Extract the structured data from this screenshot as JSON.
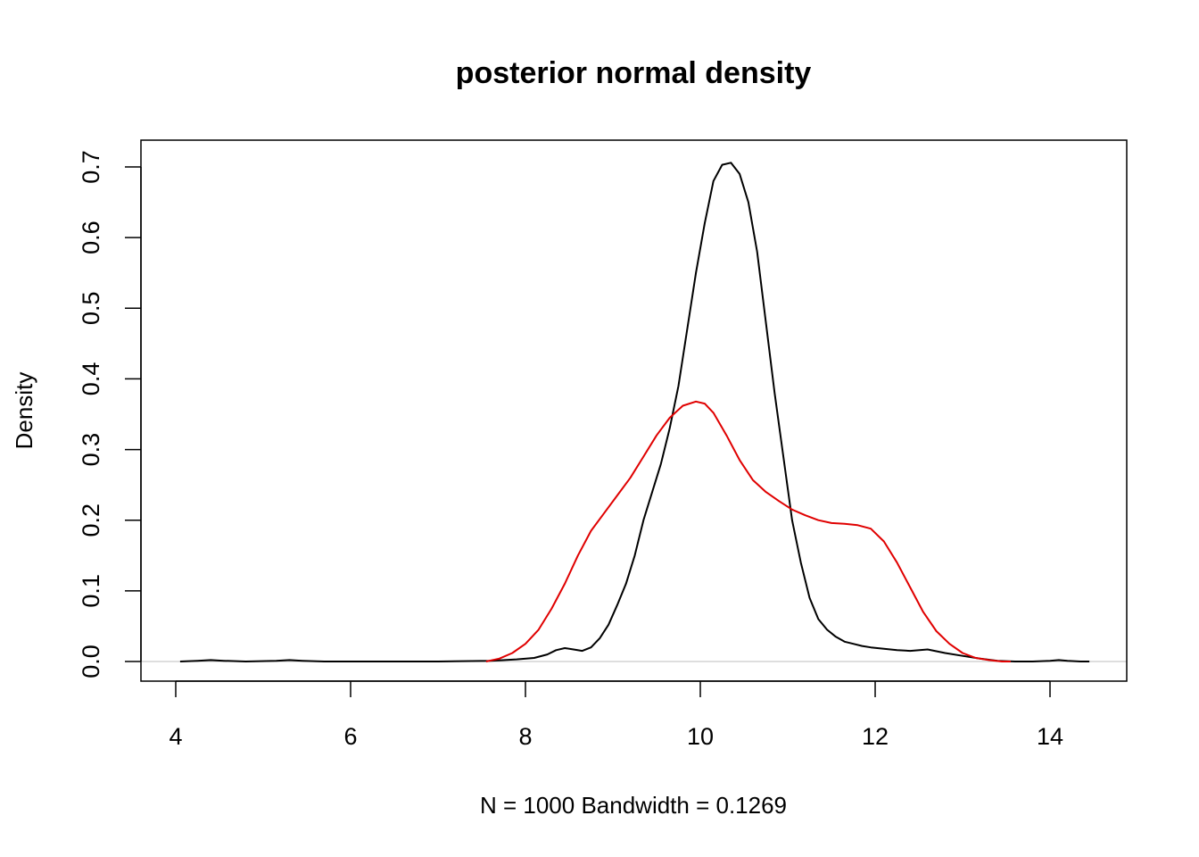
{
  "chart_data": {
    "type": "line",
    "title": "posterior normal density",
    "xlabel": "N = 1000   Bandwidth = 0.1269",
    "ylabel": "Density",
    "xlim": [
      4,
      14.6
    ],
    "ylim": [
      0,
      0.7
    ],
    "x_ticks": [
      4,
      6,
      8,
      10,
      12,
      14
    ],
    "x_tick_labels": [
      "4",
      "6",
      "8",
      "10",
      "12",
      "14"
    ],
    "y_ticks": [
      0,
      0.1,
      0.2,
      0.3,
      0.4,
      0.5,
      0.6,
      0.7
    ],
    "y_tick_labels": [
      "0.0",
      "0.1",
      "0.2",
      "0.3",
      "0.4",
      "0.5",
      "0.6",
      "0.7"
    ],
    "grid": false,
    "baseline": {
      "y": 0,
      "color": "#bebebe"
    },
    "series": [
      {
        "color": "#000000",
        "x": [
          4.05,
          4.25,
          4.4,
          4.55,
          4.8,
          5.15,
          5.3,
          5.45,
          5.7,
          6.0,
          7.0,
          7.6,
          7.9,
          8.1,
          8.25,
          8.35,
          8.45,
          8.55,
          8.65,
          8.75,
          8.85,
          8.95,
          9.05,
          9.15,
          9.25,
          9.35,
          9.45,
          9.55,
          9.65,
          9.75,
          9.85,
          9.95,
          10.05,
          10.15,
          10.25,
          10.35,
          10.45,
          10.55,
          10.65,
          10.75,
          10.85,
          10.95,
          11.05,
          11.15,
          11.25,
          11.35,
          11.45,
          11.55,
          11.65,
          11.75,
          11.85,
          11.95,
          12.1,
          12.25,
          12.4,
          12.6,
          12.8,
          13.0,
          13.2,
          13.4,
          13.6,
          13.8,
          14.0,
          14.1,
          14.2,
          14.35,
          14.45
        ],
        "y": [
          0.0,
          0.001,
          0.002,
          0.001,
          0.0,
          0.001,
          0.002,
          0.001,
          0.0,
          0.0,
          0.0,
          0.001,
          0.003,
          0.005,
          0.01,
          0.016,
          0.019,
          0.017,
          0.015,
          0.02,
          0.033,
          0.052,
          0.08,
          0.11,
          0.15,
          0.2,
          0.24,
          0.28,
          0.33,
          0.39,
          0.47,
          0.55,
          0.62,
          0.68,
          0.703,
          0.706,
          0.69,
          0.65,
          0.58,
          0.48,
          0.38,
          0.29,
          0.2,
          0.14,
          0.09,
          0.06,
          0.045,
          0.035,
          0.028,
          0.025,
          0.022,
          0.02,
          0.018,
          0.016,
          0.015,
          0.017,
          0.012,
          0.008,
          0.004,
          0.001,
          0.0,
          0.0,
          0.001,
          0.002,
          0.001,
          0.0,
          0.0
        ]
      },
      {
        "color": "#e00000",
        "x": [
          7.55,
          7.7,
          7.85,
          8.0,
          8.15,
          8.3,
          8.45,
          8.6,
          8.75,
          8.9,
          9.05,
          9.2,
          9.35,
          9.5,
          9.65,
          9.8,
          9.95,
          10.05,
          10.15,
          10.3,
          10.45,
          10.6,
          10.75,
          10.9,
          11.05,
          11.2,
          11.35,
          11.5,
          11.65,
          11.8,
          11.95,
          12.1,
          12.25,
          12.4,
          12.55,
          12.7,
          12.85,
          13.0,
          13.15,
          13.3,
          13.45,
          13.55
        ],
        "y": [
          0.0,
          0.004,
          0.012,
          0.025,
          0.045,
          0.075,
          0.11,
          0.15,
          0.185,
          0.21,
          0.235,
          0.26,
          0.29,
          0.32,
          0.345,
          0.362,
          0.368,
          0.365,
          0.352,
          0.32,
          0.285,
          0.257,
          0.24,
          0.227,
          0.215,
          0.207,
          0.2,
          0.196,
          0.195,
          0.193,
          0.188,
          0.17,
          0.14,
          0.105,
          0.07,
          0.043,
          0.025,
          0.012,
          0.005,
          0.002,
          0.0,
          0.0
        ]
      }
    ]
  }
}
